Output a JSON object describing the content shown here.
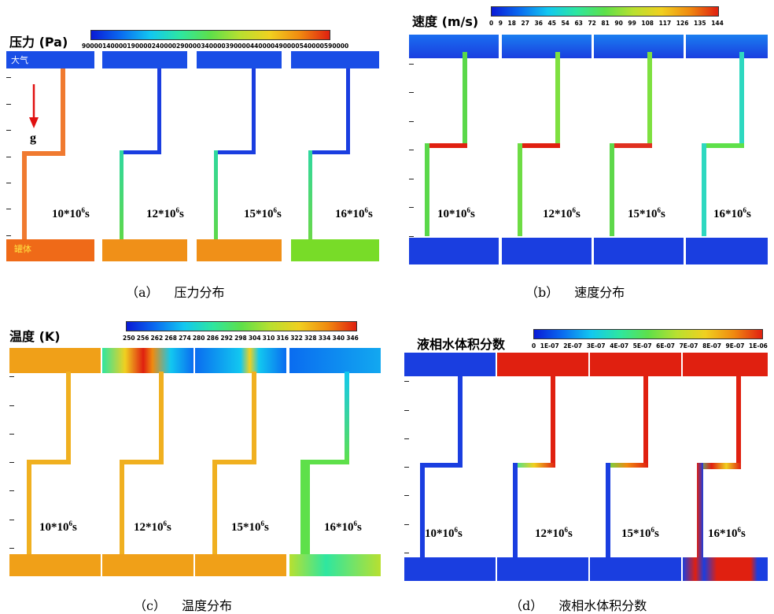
{
  "quadrants": [
    {
      "id": "a",
      "title": "压力 (Pa)",
      "colorbar_ticks": [
        "90000",
        "140000",
        "190000",
        "240000",
        "290000",
        "340000",
        "390000",
        "440000",
        "490000",
        "540000",
        "590000"
      ],
      "caption_letter": "（a）",
      "caption_text": "压力分布",
      "inner_labels": {
        "top": "大气",
        "bottom": "罐体",
        "gravity": "g"
      },
      "times": [
        "10*10",
        "12*10",
        "15*10",
        "16*10"
      ],
      "time_exp": "6",
      "time_unit": "s"
    },
    {
      "id": "b",
      "title": "速度 (m/s)",
      "colorbar_ticks": [
        "0",
        "9",
        "18",
        "27",
        "36",
        "45",
        "54",
        "63",
        "72",
        "81",
        "90",
        "99",
        "108",
        "117",
        "126",
        "135",
        "144"
      ],
      "caption_letter": "（b）",
      "caption_text": "速度分布",
      "times": [
        "10*10",
        "12*10",
        "15*10",
        "16*10"
      ],
      "time_exp": "6",
      "time_unit": "s"
    },
    {
      "id": "c",
      "title": "温度 (K)",
      "colorbar_ticks": [
        "250",
        "256",
        "262",
        "268",
        "274",
        "280",
        "286",
        "292",
        "298",
        "304",
        "310",
        "316",
        "322",
        "328",
        "334",
        "340",
        "346"
      ],
      "caption_letter": "（c）",
      "caption_text": "温度分布",
      "times": [
        "10*10",
        "12*10",
        "15*10",
        "16*10"
      ],
      "time_exp": "6",
      "time_unit": "s"
    },
    {
      "id": "d",
      "title": "液相水体积分数",
      "colorbar_ticks": [
        "0",
        "1E-07",
        "2E-07",
        "3E-07",
        "4E-07",
        "5E-07",
        "6E-07",
        "7E-07",
        "8E-07",
        "9E-07",
        "1E-06"
      ],
      "caption_letter": "（d）",
      "caption_text": "液相水体积分数",
      "times": [
        "10*10",
        "12*10",
        "15*10",
        "16*10"
      ],
      "time_exp": "6",
      "time_unit": "s"
    }
  ],
  "colors": {
    "jet_gradient": [
      "#0a1ad6",
      "#0a6cf0",
      "#12c8f0",
      "#2ee6a0",
      "#5ee04a",
      "#b8e030",
      "#f0d020",
      "#f08a10",
      "#e02010"
    ],
    "pressure_pipe_first": "#f07a30",
    "pressure_tank_first": "#ef6a18",
    "pressure_tank_mid": "#f09018",
    "pressure_tank_last": "#78dc28",
    "atmosphere_blue": "#1a4ee6",
    "gravity_arrow": "#e01010"
  }
}
